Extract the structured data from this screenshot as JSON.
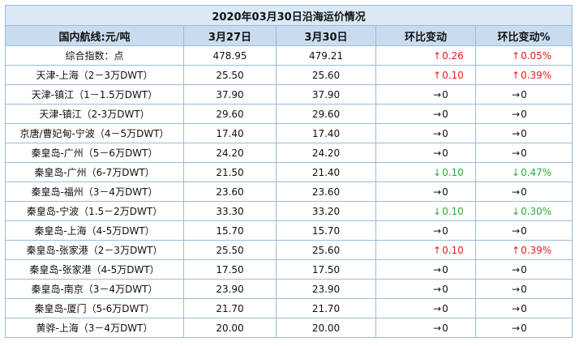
{
  "title": "2020年03月30日沿海运价情况",
  "headers": [
    "国内航线:元/吨",
    "3月27日",
    "3月30日",
    "环比变动",
    "环比变动%"
  ],
  "rows": [
    {
      "route": "综合指数：点",
      "prev": "478.95",
      "curr": "479.21",
      "dir": "up",
      "chg": "0.26",
      "pct": "0.05%"
    },
    {
      "route": "天津-上海（2－3万DWT）",
      "prev": "25.50",
      "curr": "25.60",
      "dir": "up",
      "chg": "0.10",
      "pct": "0.39%"
    },
    {
      "route": "天津-镇江（1－1.5万DWT）",
      "prev": "37.90",
      "curr": "37.90",
      "dir": "flat",
      "chg": "0",
      "pct": "0"
    },
    {
      "route": "天津-镇江（2-3万DWT）",
      "prev": "29.60",
      "curr": "29.60",
      "dir": "flat",
      "chg": "0",
      "pct": "0"
    },
    {
      "route": "京唐/曹妃甸-宁波（4－5万DWT）",
      "prev": "17.40",
      "curr": "17.40",
      "dir": "flat",
      "chg": "0",
      "pct": "0"
    },
    {
      "route": "秦皇岛-广州（5－6万DWT）",
      "prev": "24.20",
      "curr": "24.20",
      "dir": "flat",
      "chg": "0",
      "pct": "0"
    },
    {
      "route": "秦皇岛-广州（6-7万DWT）",
      "prev": "21.50",
      "curr": "21.40",
      "dir": "down",
      "chg": "0.10",
      "pct": "0.47%"
    },
    {
      "route": "秦皇岛-福州（3－4万DWT）",
      "prev": "23.60",
      "curr": "23.60",
      "dir": "flat",
      "chg": "0",
      "pct": "0"
    },
    {
      "route": "秦皇岛-宁波（1.5－2万DWT）",
      "prev": "33.30",
      "curr": "33.20",
      "dir": "down",
      "chg": "0.10",
      "pct": "0.30%"
    },
    {
      "route": "秦皇岛-上海（4-5万DWT）",
      "prev": "15.70",
      "curr": "15.70",
      "dir": "flat",
      "chg": "0",
      "pct": "0"
    },
    {
      "route": "秦皇岛-张家港（2－3万DWT）",
      "prev": "25.50",
      "curr": "25.60",
      "dir": "up",
      "chg": "0.10",
      "pct": "0.39%"
    },
    {
      "route": "秦皇岛-张家港（4-5万DWT）",
      "prev": "17.50",
      "curr": "17.50",
      "dir": "flat",
      "chg": "0",
      "pct": "0"
    },
    {
      "route": "秦皇岛-南京（3－4万DWT）",
      "prev": "23.90",
      "curr": "23.90",
      "dir": "flat",
      "chg": "0",
      "pct": "0"
    },
    {
      "route": "秦皇岛-厦门（5-6万DWT）",
      "prev": "21.70",
      "curr": "21.70",
      "dir": "flat",
      "chg": "0",
      "pct": "0"
    },
    {
      "route": "黄骅-上海（3－4万DWT）",
      "prev": "20.00",
      "curr": "20.00",
      "dir": "flat",
      "chg": "0",
      "pct": "0"
    }
  ],
  "colors": {
    "up": "#e0201a",
    "down": "#2fa83a",
    "header_bg": "#c9dcef",
    "title_bg": "#dbe8f5",
    "border": "#9dbbd6"
  },
  "icons": {
    "up": "arrow-up-icon",
    "down": "arrow-down-icon",
    "flat": "arrow-right-icon"
  }
}
